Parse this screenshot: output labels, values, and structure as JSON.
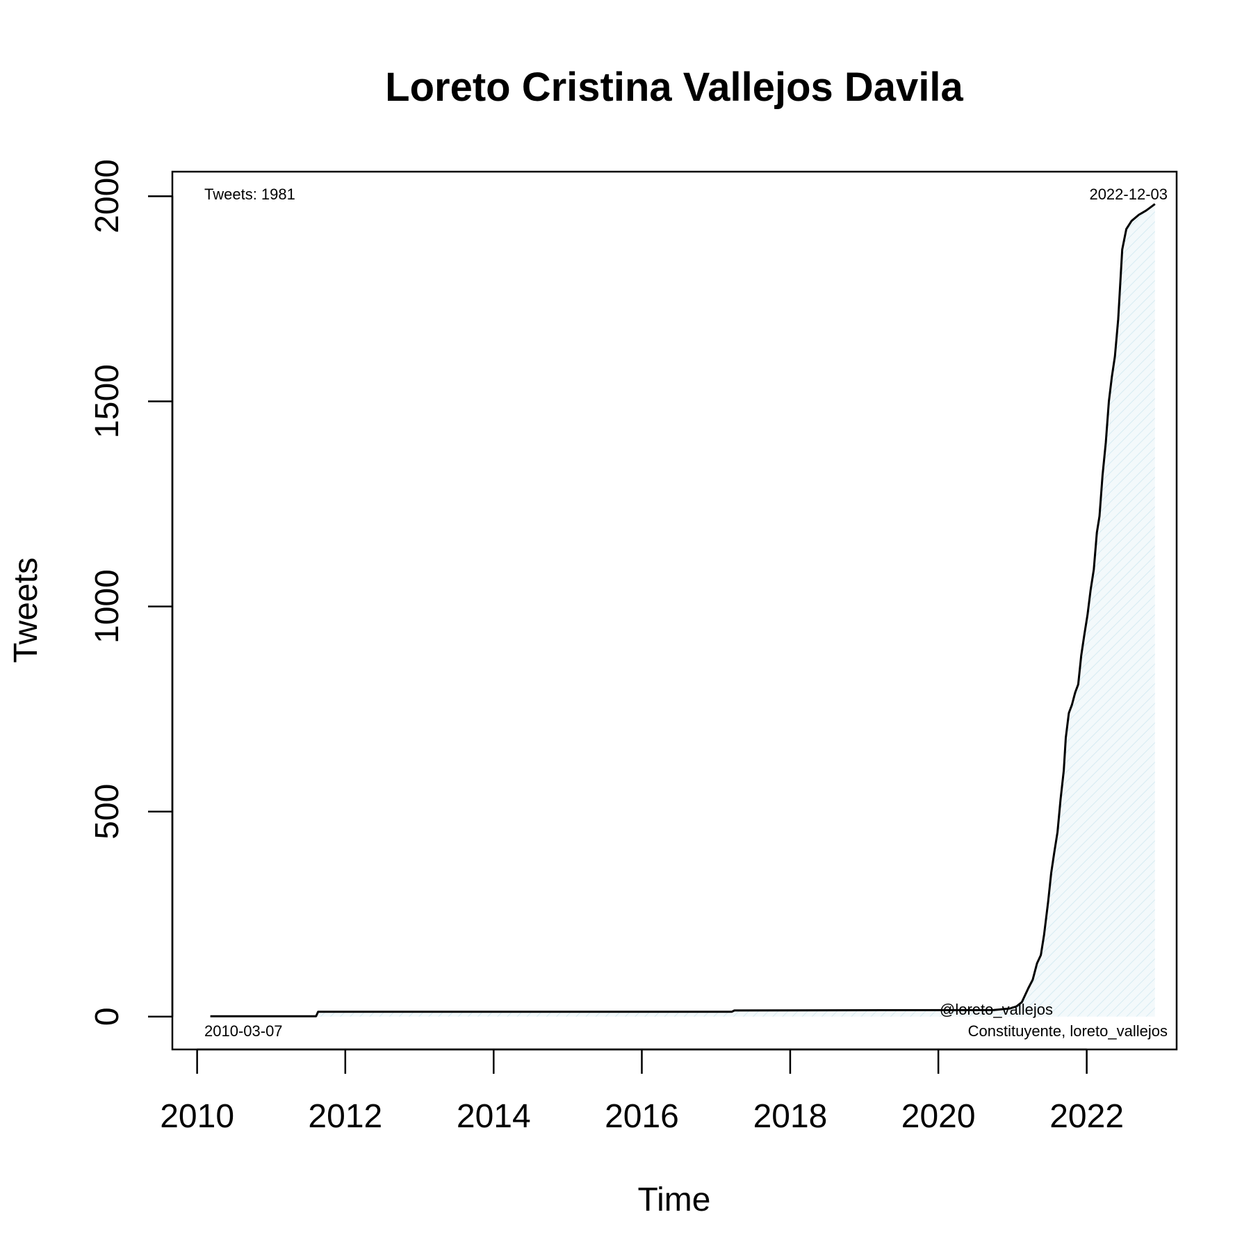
{
  "chart_data": {
    "type": "line",
    "title": "Loreto Cristina Vallejos Davila",
    "xlabel": "Time",
    "ylabel": "Tweets",
    "xlim": [
      "2009-09-01",
      "2023-03-20"
    ],
    "ylim": [
      -80,
      2060
    ],
    "x_ticks": [
      {
        "date": "2010-01-01",
        "label": "2010"
      },
      {
        "date": "2012-01-01",
        "label": "2012"
      },
      {
        "date": "2014-01-01",
        "label": "2014"
      },
      {
        "date": "2016-01-01",
        "label": "2016"
      },
      {
        "date": "2018-01-01",
        "label": "2018"
      },
      {
        "date": "2020-01-01",
        "label": "2020"
      },
      {
        "date": "2022-01-01",
        "label": "2022"
      }
    ],
    "y_ticks": [
      0,
      500,
      1000,
      1500,
      2000
    ],
    "grid": false,
    "fill": "hatched light blue area under the curve",
    "annotations": {
      "top_left": "Tweets: 1981",
      "top_right": "2022-12-03",
      "bottom_left": "2010-03-07",
      "bottom_right_line1": "@loreto_vallejos",
      "bottom_right_line2": "Constituyente, loreto_vallejos"
    },
    "series": [
      {
        "color": "#000000",
        "points": [
          [
            "2010-03-07",
            1
          ],
          [
            "2011-08-10",
            1
          ],
          [
            "2011-08-20",
            12
          ],
          [
            "2017-03-20",
            12
          ],
          [
            "2017-04-01",
            15
          ],
          [
            "2020-10-01",
            16
          ],
          [
            "2020-12-20",
            20
          ],
          [
            "2021-01-20",
            25
          ],
          [
            "2021-02-15",
            35
          ],
          [
            "2021-03-01",
            50
          ],
          [
            "2021-03-20",
            70
          ],
          [
            "2021-04-10",
            90
          ],
          [
            "2021-05-01",
            130
          ],
          [
            "2021-05-20",
            150
          ],
          [
            "2021-06-05",
            200
          ],
          [
            "2021-06-25",
            280
          ],
          [
            "2021-07-10",
            350
          ],
          [
            "2021-07-25",
            400
          ],
          [
            "2021-08-10",
            450
          ],
          [
            "2021-08-25",
            530
          ],
          [
            "2021-09-10",
            600
          ],
          [
            "2021-09-20",
            680
          ],
          [
            "2021-10-05",
            740
          ],
          [
            "2021-10-20",
            760
          ],
          [
            "2021-11-05",
            790
          ],
          [
            "2021-11-20",
            810
          ],
          [
            "2021-12-05",
            880
          ],
          [
            "2021-12-20",
            930
          ],
          [
            "2022-01-05",
            980
          ],
          [
            "2022-01-20",
            1040
          ],
          [
            "2022-02-05",
            1090
          ],
          [
            "2022-02-20",
            1180
          ],
          [
            "2022-03-05",
            1220
          ],
          [
            "2022-03-20",
            1320
          ],
          [
            "2022-04-05",
            1400
          ],
          [
            "2022-04-20",
            1500
          ],
          [
            "2022-05-05",
            1560
          ],
          [
            "2022-05-20",
            1610
          ],
          [
            "2022-06-05",
            1700
          ],
          [
            "2022-06-25",
            1870
          ],
          [
            "2022-07-15",
            1920
          ],
          [
            "2022-08-10",
            1940
          ],
          [
            "2022-09-15",
            1955
          ],
          [
            "2022-10-20",
            1965
          ],
          [
            "2022-12-03",
            1981
          ]
        ]
      }
    ]
  }
}
